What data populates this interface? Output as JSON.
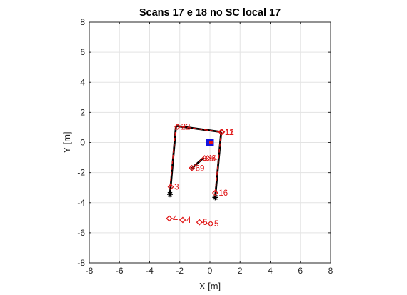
{
  "chart_data": {
    "type": "scatter",
    "title": "Scans 17 e 18 no SC local 17",
    "xlabel": "X [m]",
    "ylabel": "Y [m]",
    "xlim": [
      -8,
      8
    ],
    "ylim": [
      -8,
      8
    ],
    "xticks": [
      "-8",
      "-6",
      "-4",
      "-2",
      "0",
      "2",
      "4",
      "6",
      "8"
    ],
    "yticks": [
      "-8",
      "-6",
      "-4",
      "-2",
      "0",
      "2",
      "4",
      "6",
      "8"
    ],
    "grid": true,
    "colors": {
      "scan_black": "#000000",
      "scan_red": "#e01414",
      "robot": "#1414e0"
    },
    "robot_pose": {
      "x": 0.0,
      "y": 0.0
    },
    "series": [
      {
        "segments": [
          [
            [
              -2.65,
              -3.45
            ],
            [
              -2.25,
              1.1
            ]
          ],
          [
            [
              -2.25,
              1.1
            ],
            [
              0.75,
              0.7
            ]
          ],
          [
            [
              0.75,
              0.7
            ],
            [
              0.35,
              -3.65
            ]
          ],
          [
            [
              -1.3,
              -1.8
            ],
            [
              -0.4,
              -1.0
            ]
          ]
        ]
      },
      {
        "segments": [
          [
            [
              -2.65,
              -2.95
            ],
            [
              -2.25,
              1.1
            ]
          ],
          [
            [
              -2.25,
              1.1
            ],
            [
              0.75,
              0.7
            ]
          ],
          [
            [
              0.75,
              0.7
            ],
            [
              0.35,
              -3.3
            ]
          ],
          [
            [
              -1.3,
              -1.8
            ],
            [
              -0.4,
              -1.0
            ]
          ]
        ]
      }
    ],
    "points": [
      {
        "label": "3",
        "x": -2.6,
        "y": -2.95,
        "marker": "diamond"
      },
      {
        "label": "22",
        "x": -2.15,
        "y": 1.05,
        "marker": "diamond"
      },
      {
        "label": "11",
        "x": 0.8,
        "y": 0.7,
        "marker": "diamond"
      },
      {
        "label": "12",
        "x": 0.75,
        "y": 0.7,
        "marker": "diamond"
      },
      {
        "label": "16",
        "x": 0.35,
        "y": -3.35,
        "marker": "diamond"
      },
      {
        "label": "14",
        "x": -0.35,
        "y": -1.05,
        "marker": "diamond"
      },
      {
        "label": "6",
        "x": -0.15,
        "y": -1.05,
        "marker": "diamond"
      },
      {
        "label": "69",
        "x": -1.2,
        "y": -1.7,
        "marker": "diamond"
      },
      {
        "label": "4",
        "x": -2.7,
        "y": -5.05,
        "marker": "diamond"
      },
      {
        "label": "4",
        "x": -1.8,
        "y": -5.15,
        "marker": "diamond"
      },
      {
        "label": "5",
        "x": -0.7,
        "y": -5.3,
        "marker": "diamond"
      },
      {
        "label": "5",
        "x": 0.05,
        "y": -5.4,
        "marker": "diamond"
      }
    ]
  }
}
